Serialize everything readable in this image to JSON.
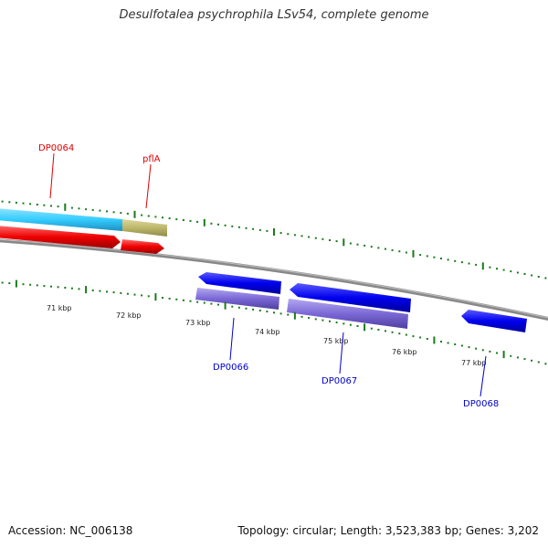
{
  "title": "Desulfotalea psychrophila LSv54, complete genome",
  "footer": {
    "accession": "Accession: NC_006138",
    "stats": "Topology: circular; Length: 3,523,383 bp; Genes: 3,202"
  },
  "scale_labels": [
    "71 kbp",
    "72 kbp",
    "73 kbp",
    "74 kbp",
    "75 kbp",
    "76 kbp",
    "77 kbp"
  ],
  "colors": {
    "backbone": "#808080",
    "cds_reverse": "#ee0000",
    "cds_forward": "#0000ee",
    "protein_track_forward": "#7b68d6",
    "tick": "#1a7a1a",
    "label_reverse": "#dd0000",
    "label_forward": "#0000cc",
    "cyan_track": "#33ccff",
    "khaki_track": "#bdb76b"
  },
  "genes": [
    {
      "name": "DP0064",
      "strand": "reverse"
    },
    {
      "name": "pflA",
      "strand": "reverse"
    },
    {
      "name": "DP0066",
      "strand": "forward"
    },
    {
      "name": "DP0067",
      "strand": "forward"
    },
    {
      "name": "DP0068",
      "strand": "forward"
    }
  ]
}
